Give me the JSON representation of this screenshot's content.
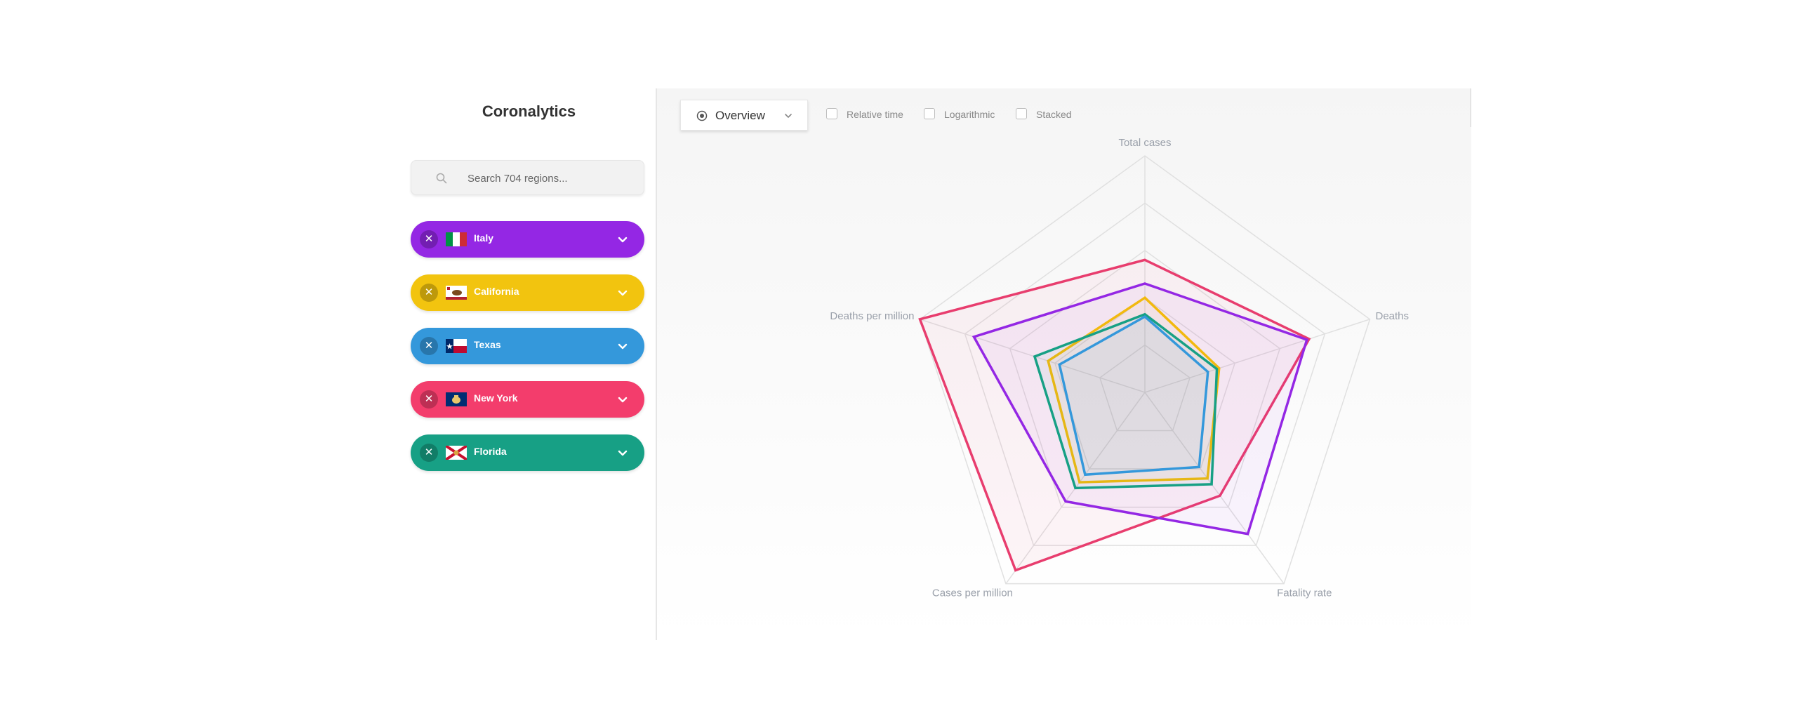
{
  "sidebar": {
    "title": "Coronalytics",
    "search": {
      "placeholder": "Search 704 regions...",
      "icon": "search-icon"
    },
    "regions": [
      {
        "name": "Italy",
        "color": "#9427e4",
        "flag": "italy-flag",
        "remove_icon": "close-icon",
        "expand_icon": "chevron-down-icon"
      },
      {
        "name": "California",
        "color": "#f2c40f",
        "flag": "california-flag",
        "remove_icon": "close-icon",
        "expand_icon": "chevron-down-icon"
      },
      {
        "name": "Texas",
        "color": "#3498db",
        "flag": "texas-flag",
        "remove_icon": "close-icon",
        "expand_icon": "chevron-down-icon"
      },
      {
        "name": "New York",
        "color": "#f33d6c",
        "flag": "new-york-flag",
        "remove_icon": "close-icon",
        "expand_icon": "chevron-down-icon"
      },
      {
        "name": "Florida",
        "color": "#17a085",
        "flag": "florida-flag",
        "remove_icon": "close-icon",
        "expand_icon": "chevron-down-icon"
      }
    ]
  },
  "toolbar": {
    "view_select": {
      "value": "Overview",
      "icon": "radar-icon"
    },
    "options": [
      {
        "label": "Relative time",
        "checked": false
      },
      {
        "label": "Logarithmic",
        "checked": false
      },
      {
        "label": "Stacked",
        "checked": false
      }
    ]
  },
  "chart_data": {
    "type": "radar",
    "axes": [
      "Total cases",
      "Deaths",
      "Fatality rate",
      "Cases per million",
      "Deaths per million"
    ],
    "scale": {
      "min": 0,
      "max": 1,
      "rings": 5
    },
    "grid": true,
    "legend": "none",
    "series": [
      {
        "region": "New York",
        "color": "#e83d6e",
        "values": [
          0.56,
          0.73,
          0.54,
          0.93,
          1.0
        ]
      },
      {
        "region": "Italy",
        "color": "#9427e4",
        "values": [
          0.46,
          0.72,
          0.74,
          0.57,
          0.76
        ]
      },
      {
        "region": "California",
        "color": "#f2b90f",
        "values": [
          0.4,
          0.33,
          0.45,
          0.47,
          0.43
        ]
      },
      {
        "region": "Florida",
        "color": "#17a085",
        "values": [
          0.33,
          0.32,
          0.48,
          0.5,
          0.49
        ]
      },
      {
        "region": "Texas",
        "color": "#3498db",
        "values": [
          0.32,
          0.28,
          0.39,
          0.43,
          0.38
        ]
      }
    ]
  }
}
